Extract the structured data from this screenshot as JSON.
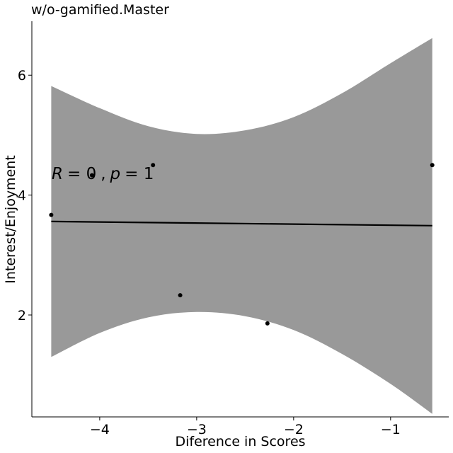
{
  "chart_data": {
    "type": "scatter",
    "title": "w/o-gamified.Master",
    "xlabel": "Diference in Scores",
    "ylabel": "Interest/Enjoyment",
    "xlim": [
      -4.7,
      -0.4
    ],
    "ylim": [
      0.3,
      6.9
    ],
    "xticks": [
      -4,
      -3,
      -2,
      -1
    ],
    "yticks": [
      2,
      4,
      6
    ],
    "points": [
      {
        "x": -4.5,
        "y": 3.67
      },
      {
        "x": -4.08,
        "y": 4.33
      },
      {
        "x": -3.45,
        "y": 4.5
      },
      {
        "x": -3.17,
        "y": 2.33
      },
      {
        "x": -2.27,
        "y": 1.86
      },
      {
        "x": -0.57,
        "y": 4.5
      }
    ],
    "regression": {
      "x": [
        -4.5,
        -0.57
      ],
      "y": [
        3.56,
        3.49
      ]
    },
    "confidence_band": {
      "x": [
        -4.5,
        -4.0,
        -3.5,
        -3.0,
        -2.5,
        -2.0,
        -1.5,
        -1.0,
        -0.57
      ],
      "upper": [
        5.82,
        5.45,
        5.15,
        5.02,
        5.08,
        5.3,
        5.7,
        6.2,
        6.62
      ],
      "lower": [
        1.3,
        1.7,
        1.96,
        2.05,
        1.98,
        1.75,
        1.35,
        0.85,
        0.35
      ]
    },
    "annotation": {
      "r_label": "R",
      "r_value": "= 0",
      "sep": ",",
      "p_label": "p",
      "p_value": "= 1"
    },
    "colors": {
      "band": "#999999",
      "line": "#000000",
      "points": "#000000"
    }
  }
}
